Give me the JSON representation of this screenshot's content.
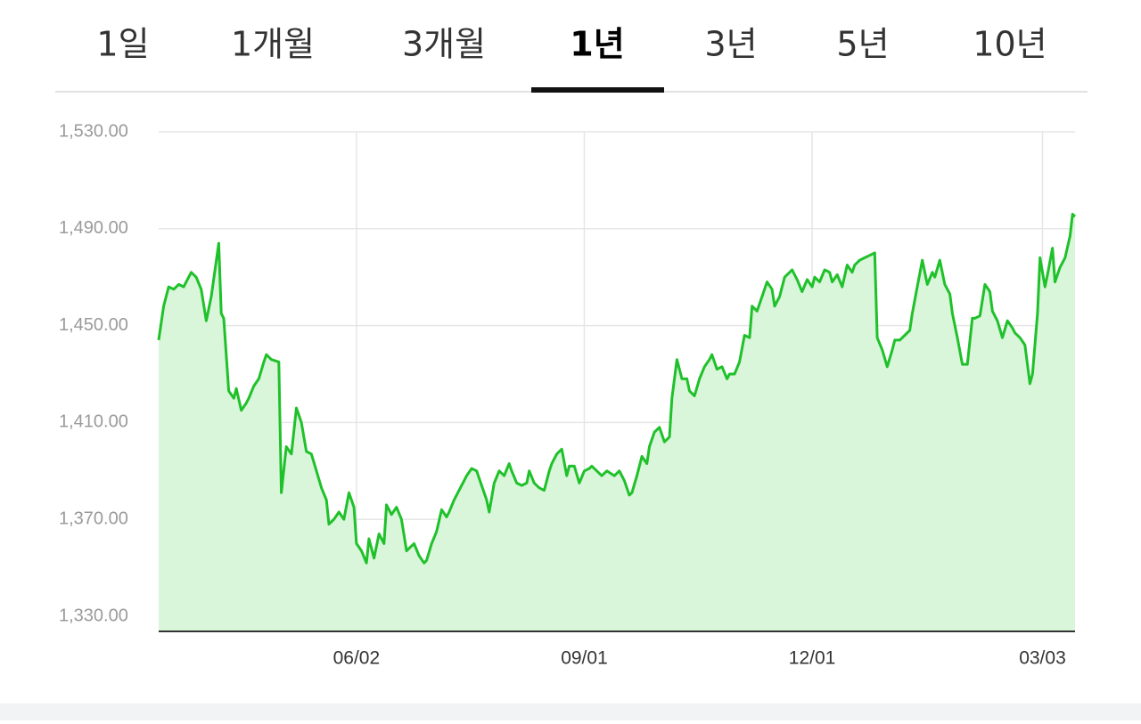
{
  "tabs": {
    "items": [
      "1일",
      "1개월",
      "3개월",
      "1년",
      "3년",
      "5년",
      "10년"
    ],
    "selected_index": 3
  },
  "chart_data": {
    "type": "line",
    "color": "#1fc12a",
    "fill_color": "#d9f5da",
    "grid": true,
    "x": [
      0,
      2,
      4,
      6,
      8,
      10,
      11,
      13,
      15,
      17,
      19,
      21,
      24,
      25,
      26,
      28,
      30,
      31,
      33,
      35,
      36,
      38,
      40,
      42,
      43,
      45,
      48,
      49,
      51,
      53,
      55,
      57,
      59,
      61,
      63,
      65,
      67,
      68,
      70,
      72,
      74,
      76,
      78,
      79,
      81,
      83,
      84,
      86,
      88,
      90,
      91,
      93,
      95,
      97,
      99,
      100,
      102,
      104,
      106,
      107,
      109,
      111,
      113,
      115,
      116,
      118,
      120,
      122,
      123,
      125,
      127,
      129,
      131,
      132,
      134,
      136,
      138,
      140,
      141,
      143,
      145,
      147,
      148,
      150,
      152,
      154,
      156,
      157,
      159,
      161,
      163,
      164,
      166,
      168,
      170,
      172,
      173,
      175,
      177,
      179,
      182,
      184,
      186,
      188,
      189,
      191,
      193,
      195,
      196,
      198,
      200,
      202,
      204,
      205,
      207,
      209,
      211,
      212,
      214,
      216,
      218,
      220,
      221,
      223,
      225,
      227,
      228,
      230,
      232,
      234,
      236,
      237,
      239,
      241,
      243,
      245,
      246,
      248,
      250,
      252,
      253,
      255,
      257,
      259,
      261,
      262,
      264,
      266,
      268,
      269,
      271,
      273,
      275,
      277,
      278,
      280,
      282,
      284,
      286,
      287,
      289,
      291,
      293,
      294,
      296,
      298,
      300,
      301,
      303,
      305,
      307,
      309,
      310,
      312,
      314,
      316,
      317,
      319,
      321,
      323,
      325,
      326,
      328,
      330,
      332,
      333,
      335,
      337,
      339,
      341,
      342,
      344,
      346,
      348,
      349,
      351,
      352,
      354,
      355,
      357,
      358,
      360,
      362,
      364,
      365,
      366
    ],
    "values": [
      1444,
      1458,
      1466,
      1465,
      1467,
      1466,
      1468,
      1472,
      1470,
      1465,
      1452,
      1462,
      1484,
      1455,
      1453,
      1423,
      1420,
      1424,
      1415,
      1418,
      1420,
      1425,
      1428,
      1435,
      1438,
      1436,
      1435,
      1381,
      1400,
      1397,
      1416,
      1410,
      1398,
      1397,
      1390,
      1383,
      1378,
      1368,
      1370,
      1373,
      1370,
      1381,
      1375,
      1360,
      1357,
      1352,
      1362,
      1354,
      1364,
      1360,
      1376,
      1372,
      1375,
      1370,
      1357,
      1358,
      1360,
      1355,
      1352,
      1353,
      1360,
      1365,
      1374,
      1371,
      1373,
      1378,
      1382,
      1386,
      1388,
      1391,
      1390,
      1384,
      1378,
      1373,
      1385,
      1390,
      1388,
      1393,
      1390,
      1385,
      1384,
      1385,
      1390,
      1385,
      1383,
      1382,
      1390,
      1393,
      1397,
      1399,
      1388,
      1392,
      1392,
      1385,
      1390,
      1391,
      1392,
      1390,
      1388,
      1390,
      1388,
      1390,
      1386,
      1380,
      1381,
      1388,
      1396,
      1393,
      1400,
      1406,
      1408,
      1402,
      1404,
      1420,
      1436,
      1428,
      1428,
      1423,
      1421,
      1428,
      1433,
      1436,
      1438,
      1432,
      1433,
      1428,
      1430,
      1430,
      1435,
      1446,
      1445,
      1458,
      1456,
      1462,
      1468,
      1465,
      1458,
      1462,
      1470,
      1472,
      1473,
      1469,
      1464,
      1469,
      1466,
      1470,
      1468,
      1473,
      1472,
      1468,
      1471,
      1466,
      1475,
      1472,
      1475,
      1477,
      1478,
      1479,
      1480,
      1445,
      1440,
      1433,
      1440,
      1444,
      1444,
      1446,
      1448,
      1455,
      1466,
      1477,
      1467,
      1472,
      1470,
      1477,
      1467,
      1463,
      1455,
      1445,
      1434,
      1434,
      1453,
      1453,
      1454,
      1467,
      1464,
      1456,
      1452,
      1445,
      1452,
      1449,
      1447,
      1445,
      1442,
      1426,
      1430,
      1455,
      1478,
      1466,
      1471,
      1482,
      1468,
      1474,
      1478,
      1487,
      1496,
      1495
    ],
    "xlim": [
      0,
      366
    ],
    "xticks": [
      {
        "value": 79,
        "label": "06/02"
      },
      {
        "value": 170,
        "label": "09/01"
      },
      {
        "value": 261,
        "label": "12/01"
      },
      {
        "value": 353,
        "label": "03/03"
      }
    ],
    "ylim": [
      1323.75,
      1530
    ],
    "yticks": [
      {
        "value": 1330,
        "label": "1,330.00"
      },
      {
        "value": 1370,
        "label": "1,370.00"
      },
      {
        "value": 1410,
        "label": "1,410.00"
      },
      {
        "value": 1450,
        "label": "1,450.00"
      },
      {
        "value": 1490,
        "label": "1,490.00"
      },
      {
        "value": 1530,
        "label": "1,530.00"
      }
    ]
  }
}
